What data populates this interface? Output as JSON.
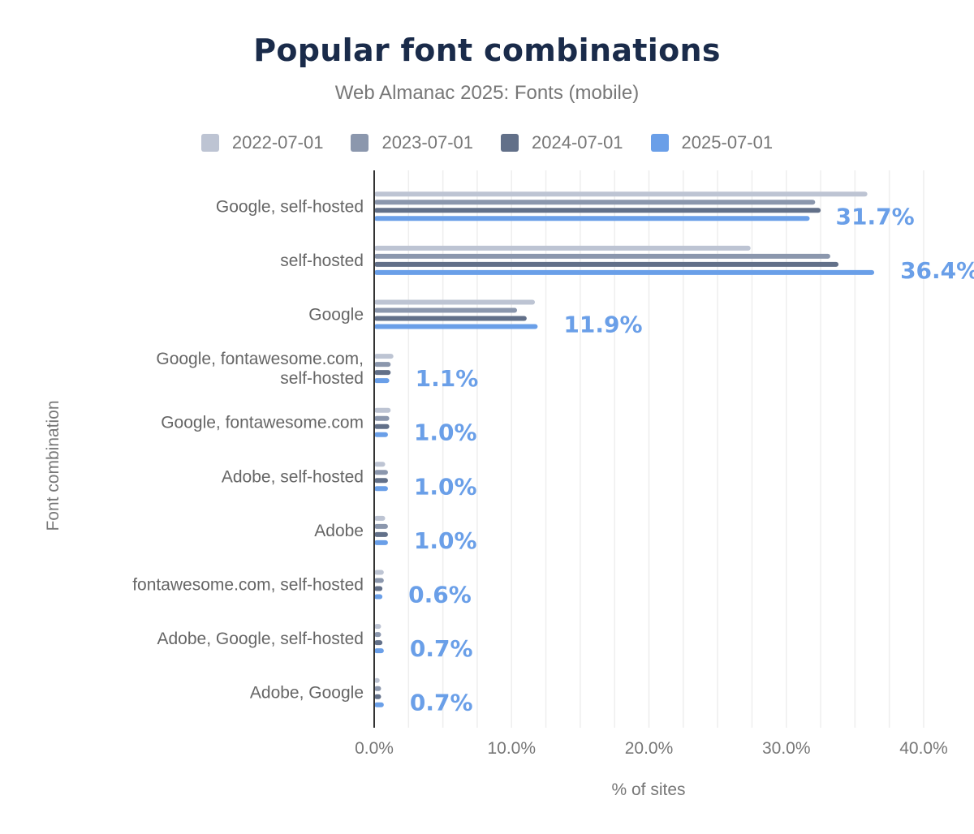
{
  "chart_data": {
    "type": "bar",
    "orientation": "horizontal",
    "title": "Popular font combinations",
    "subtitle": "Web Almanac 2025: Fonts (mobile)",
    "xlabel": "% of sites",
    "ylabel": "Font combination",
    "xlim": [
      0,
      40
    ],
    "xticks": [
      "0.0%",
      "10.0%",
      "20.0%",
      "30.0%",
      "40.0%"
    ],
    "grid": true,
    "legend_position": "top",
    "categories": [
      [
        "Google, self-hosted"
      ],
      [
        "self-hosted"
      ],
      [
        "Google"
      ],
      [
        "Google, fontawesome.com,",
        "self-hosted"
      ],
      [
        "Google, fontawesome.com"
      ],
      [
        "Adobe, self-hosted"
      ],
      [
        "Adobe"
      ],
      [
        "fontawesome.com, self-hosted"
      ],
      [
        "Adobe, Google, self-hosted"
      ],
      [
        "Adobe, Google"
      ]
    ],
    "series": [
      {
        "name": "2022-07-01",
        "color": "#bdc4d3",
        "values": [
          35.9,
          27.4,
          11.7,
          1.4,
          1.2,
          0.8,
          0.8,
          0.7,
          0.5,
          0.4
        ]
      },
      {
        "name": "2023-07-01",
        "color": "#8b97ad",
        "values": [
          32.1,
          33.2,
          10.4,
          1.2,
          1.1,
          1.0,
          1.0,
          0.7,
          0.5,
          0.5
        ]
      },
      {
        "name": "2024-07-01",
        "color": "#627089",
        "values": [
          32.5,
          33.8,
          11.1,
          1.2,
          1.1,
          1.0,
          1.0,
          0.6,
          0.6,
          0.5
        ]
      },
      {
        "name": "2025-07-01",
        "color": "#6a9fe8",
        "values": [
          31.7,
          36.4,
          11.9,
          1.1,
          1.0,
          1.0,
          1.0,
          0.6,
          0.7,
          0.7
        ]
      }
    ],
    "data_labels": [
      "31.7%",
      "36.4%",
      "11.9%",
      "1.1%",
      "1.0%",
      "1.0%",
      "1.0%",
      "0.6%",
      "0.7%",
      "0.7%"
    ]
  }
}
